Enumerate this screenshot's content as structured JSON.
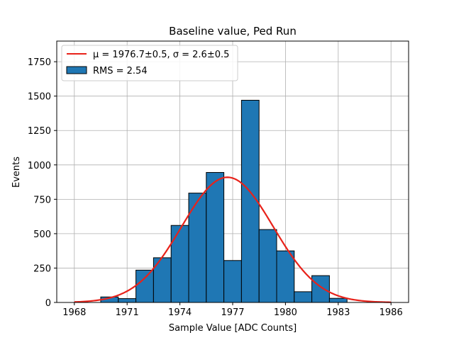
{
  "chart_data": {
    "type": "bar",
    "title": "Baseline value, Ped Run",
    "xlabel": "Sample Value [ADC Counts]",
    "ylabel": "Events",
    "xlim": [
      1967,
      1987
    ],
    "ylim": [
      0,
      1900
    ],
    "xticks": [
      1968,
      1971,
      1974,
      1977,
      1980,
      1983,
      1986
    ],
    "yticks": [
      0,
      250,
      500,
      750,
      1000,
      1250,
      1500,
      1750
    ],
    "grid": true,
    "legend_position": "top-left",
    "colors": {
      "bar_fill": "#1f77b4",
      "bar_edge": "#000000",
      "fit_line": "#e8221a",
      "grid": "#b0b0b0"
    },
    "histogram": {
      "name": "RMS = 2.54",
      "bin_edges": [
        1968.5,
        1969.5,
        1970.5,
        1971.5,
        1972.5,
        1973.5,
        1974.5,
        1975.5,
        1976.5,
        1977.5,
        1978.5,
        1979.5,
        1980.5,
        1981.5,
        1982.5,
        1983.5
      ],
      "counts": [
        0,
        40,
        28,
        235,
        325,
        560,
        795,
        945,
        305,
        1470,
        530,
        375,
        78,
        195,
        30
      ]
    },
    "fit": {
      "name": "μ = 1976.7±0.5, σ = 2.6±0.5",
      "type": "gaussian",
      "mu": 1976.7,
      "sigma": 2.6,
      "amplitude": 910,
      "x_range": [
        1968,
        1986
      ]
    },
    "legend": [
      {
        "label": "μ = 1976.7±0.5, σ = 2.6±0.5",
        "kind": "line"
      },
      {
        "label": "RMS = 2.54",
        "kind": "patch"
      }
    ]
  }
}
